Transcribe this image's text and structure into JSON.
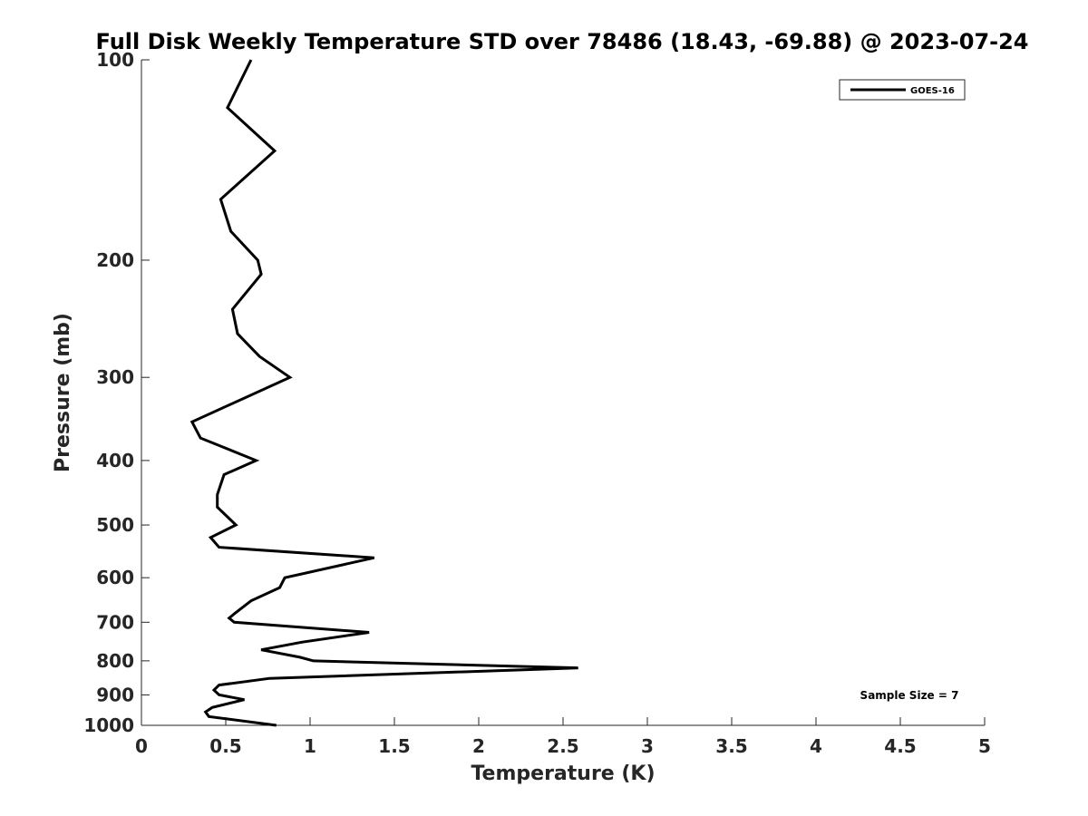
{
  "chart_data": {
    "type": "line",
    "title": "Full Disk Weekly Temperature STD over 78486 (18.43, -69.88) @ 2023-07-24",
    "xlabel": "Temperature (K)",
    "ylabel": "Pressure (mb)",
    "xlim": [
      0,
      5
    ],
    "ylim": [
      1000,
      100
    ],
    "y_scale": "log",
    "x_ticks": [
      0,
      0.5,
      1,
      1.5,
      2,
      2.5,
      3,
      3.5,
      4,
      4.5,
      5
    ],
    "x_tick_labels": [
      "0",
      "0.5",
      "1",
      "1.5",
      "2",
      "2.5",
      "3",
      "3.5",
      "4",
      "4.5",
      "5"
    ],
    "y_ticks": [
      100,
      200,
      300,
      400,
      500,
      600,
      700,
      800,
      900,
      1000
    ],
    "y_tick_labels": [
      "100",
      "200",
      "300",
      "400",
      "500",
      "600",
      "700",
      "800",
      "900",
      "1000"
    ],
    "grid": false,
    "legend_position": "top-right",
    "series": [
      {
        "name": "GOES-16",
        "color": "#000000",
        "x": [
          0.65,
          0.51,
          0.79,
          0.47,
          0.53,
          0.69,
          0.71,
          0.54,
          0.57,
          0.7,
          0.88,
          0.3,
          0.35,
          0.68,
          0.49,
          0.45,
          0.45,
          0.56,
          0.41,
          0.46,
          1.38,
          0.85,
          0.82,
          0.65,
          0.55,
          0.52,
          0.55,
          1.35,
          0.95,
          0.71,
          0.94,
          1.02,
          2.59,
          0.76,
          0.46,
          0.43,
          0.46,
          0.61,
          0.42,
          0.38,
          0.4,
          0.8
        ],
        "y": [
          100,
          118,
          137,
          162,
          181,
          200,
          210,
          237,
          258,
          279,
          300,
          350,
          370,
          400,
          420,
          450,
          470,
          500,
          522,
          540,
          560,
          600,
          621,
          650,
          680,
          690,
          700,
          725,
          750,
          770,
          790,
          800,
          820,
          850,
          870,
          885,
          900,
          915,
          940,
          955,
          970,
          1000
        ]
      }
    ],
    "annotations": [
      "Sample Size = 7"
    ]
  }
}
